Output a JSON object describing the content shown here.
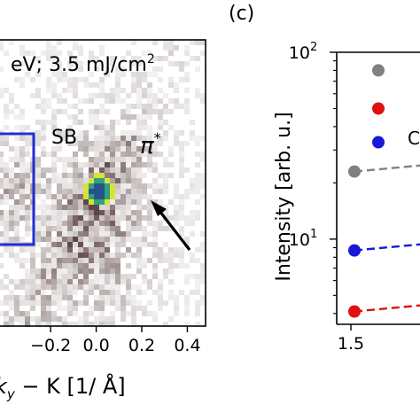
{
  "chart_data": [
    {
      "type": "heatmap",
      "panel_label": "",
      "annotation_top": "eV; 3.5 mJ/cm",
      "annotation_sup": "2",
      "xlabel_prefix": "k",
      "xlabel_sub": "y",
      "xlabel_rest": " − K [1/ Å]",
      "x_ticks": [
        "−0.2",
        "0.0",
        "0.2",
        "0.4"
      ],
      "x_tick_values": [
        -0.2,
        0.0,
        0.2,
        0.4
      ],
      "xlim": [
        -0.43,
        0.48
      ],
      "label_sb": "SB",
      "label_pi": "π",
      "label_pi_sup": "*",
      "hotspot_x": 0.0,
      "arrow_note": "arrow pointing toward π* branch",
      "box_color": "#1f2fd0"
    },
    {
      "type": "scatter",
      "panel_label": "(c)",
      "ylabel": "Intensity [arb. u.]",
      "yscale": "log",
      "ylim": [
        3.5,
        100
      ],
      "y_ticks": [
        "10",
        "10"
      ],
      "y_tick_sup": [
        "1",
        "2"
      ],
      "y_tick_values": [
        10,
        100
      ],
      "x_ticks": [
        "1.5"
      ],
      "x_tick_values": [
        1.5
      ],
      "xlim": [
        1.3,
        2.5
      ],
      "series": [
        {
          "color": "#808080",
          "x": [
            1.55
          ],
          "y": [
            23
          ],
          "legend_y": 80
        },
        {
          "color": "#e01010",
          "x": [
            1.55
          ],
          "y": [
            4.1
          ],
          "legend_y": 50
        },
        {
          "color": "#1818d8",
          "x": [
            1.55
          ],
          "y": [
            8.7
          ],
          "legend_y": 33
        }
      ],
      "legend_partial_text": "C"
    }
  ]
}
